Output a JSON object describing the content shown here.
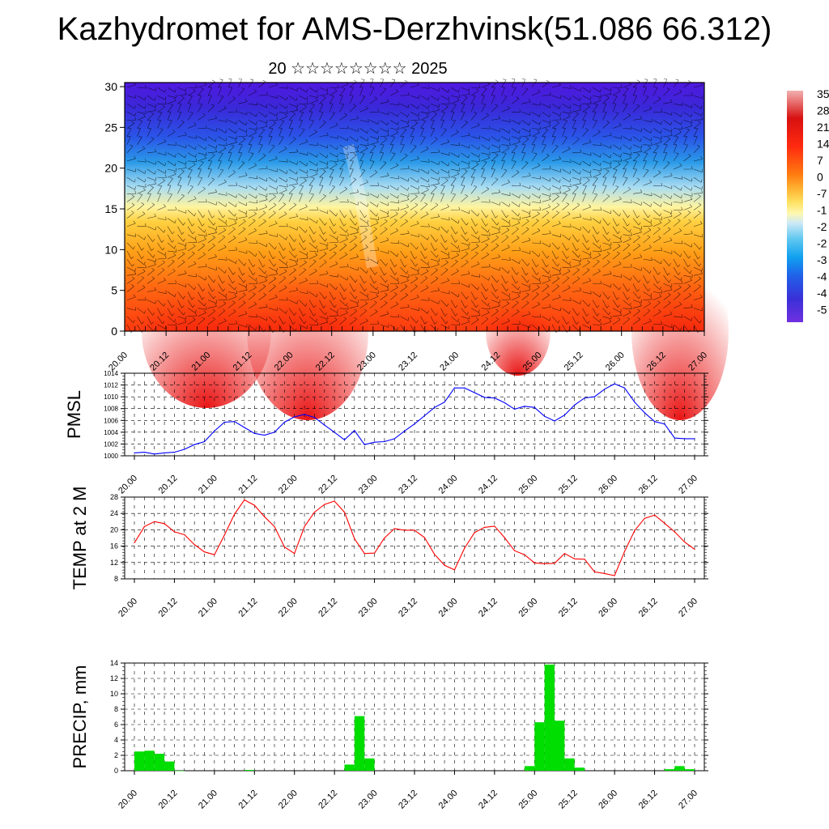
{
  "title": "Kazhydromet for AMS-Derzhvinsk(51.086 66.312)",
  "subtitle": "20 ☆☆☆☆☆☆☆☆ 2025",
  "colors": {
    "pmsl_line": "#0000ff",
    "temp_line": "#ff0000",
    "precip_bar": "#00dd00",
    "palette_stops": [
      "#5a10e8",
      "#3a2ad8",
      "#2060f0",
      "#10a0f0",
      "#9fd8f4",
      "#fff6a0",
      "#ffd040",
      "#ff9010",
      "#ff5010",
      "#e81010",
      "#c00000",
      "#f0a0a0"
    ]
  },
  "chart_data": [
    {
      "type": "heatmap",
      "name": "cross-section",
      "x_ticks": [
        "20.00",
        "20.12",
        "21.00",
        "21.12",
        "22.00",
        "22.12",
        "23.00",
        "23.12",
        "24.00",
        "24.12",
        "25.00",
        "25.12",
        "26.00",
        "26.12",
        "27.00"
      ],
      "y_ticks": [
        "0",
        "5",
        "10",
        "15",
        "20",
        "25",
        "30"
      ],
      "ylim": [
        0,
        30.5
      ],
      "colorbar_labels": [
        "35",
        "28",
        "21",
        "14",
        "7",
        "0",
        "-7",
        "-1",
        "-2",
        "-2",
        "-3",
        "-4",
        "-4",
        "-5"
      ]
    },
    {
      "type": "line",
      "ylabel": "PMSL",
      "x_ticks": [
        "20.00",
        "20.12",
        "21.00",
        "21.12",
        "22.00",
        "22.12",
        "23.00",
        "23.12",
        "24.00",
        "24.12",
        "25.00",
        "25.12",
        "26.00",
        "26.12",
        "27.00"
      ],
      "y_ticks": [
        "1000",
        "1002",
        "1004",
        "1006",
        "1008",
        "1010",
        "1012",
        "1014"
      ],
      "ylim": [
        1000,
        1014
      ],
      "x": [
        0,
        3,
        6,
        9,
        12,
        15,
        18,
        21,
        24,
        27,
        30,
        33,
        36,
        39,
        42,
        45,
        48,
        51,
        54,
        57,
        60,
        63,
        66,
        69,
        72,
        75,
        78,
        81,
        84,
        87,
        90,
        93,
        96,
        99,
        102,
        105,
        108,
        111,
        114,
        117,
        120,
        123,
        126,
        129,
        132,
        135,
        138,
        141,
        144,
        147,
        150,
        153,
        156,
        159,
        162,
        165,
        168
      ],
      "values": [
        1000.5,
        1000.6,
        1000.3,
        1000.5,
        1000.6,
        1001.1,
        1001.9,
        1002.4,
        1004.2,
        1005.7,
        1005.8,
        1004.8,
        1003.8,
        1003.5,
        1004.0,
        1005.7,
        1006.6,
        1007.0,
        1006.5,
        1005.2,
        1004.0,
        1002.7,
        1004.3,
        1001.9,
        1002.3,
        1002.4,
        1002.9,
        1004.2,
        1005.4,
        1006.8,
        1008.2,
        1009.1,
        1011.5,
        1011.5,
        1010.7,
        1009.9,
        1009.8,
        1009.0,
        1007.9,
        1008.4,
        1008.2,
        1006.7,
        1005.9,
        1006.9,
        1008.6,
        1009.8,
        1010.0,
        1011.3,
        1012.2,
        1011.5,
        1009.1,
        1007.3,
        1005.8,
        1005.4,
        1003.0,
        1002.9,
        1002.9
      ]
    },
    {
      "type": "line",
      "ylabel": "TEMP at 2 M",
      "x_ticks": [
        "20.00",
        "20.12",
        "21.00",
        "21.12",
        "22.00",
        "22.12",
        "23.00",
        "23.12",
        "24.00",
        "24.12",
        "25.00",
        "25.12",
        "26.00",
        "26.12",
        "27.00"
      ],
      "y_ticks": [
        "8",
        "12",
        "16",
        "20",
        "24",
        "28"
      ],
      "ylim": [
        8,
        28
      ],
      "x": [
        0,
        3,
        6,
        9,
        12,
        15,
        18,
        21,
        24,
        27,
        30,
        33,
        36,
        39,
        42,
        45,
        48,
        51,
        54,
        57,
        60,
        63,
        66,
        69,
        72,
        75,
        78,
        81,
        84,
        87,
        90,
        93,
        96,
        99,
        102,
        105,
        108,
        111,
        114,
        117,
        120,
        123,
        126,
        129,
        132,
        135,
        138,
        141,
        144,
        147,
        150,
        153,
        156,
        159,
        162,
        165,
        168
      ],
      "values": [
        16.8,
        20.8,
        22.0,
        21.5,
        19.5,
        18.8,
        16.4,
        14.6,
        13.9,
        18.7,
        23.8,
        27.3,
        26.0,
        23.2,
        20.8,
        15.8,
        14.2,
        20.8,
        24.3,
        26.2,
        27.0,
        24.3,
        17.8,
        14.2,
        14.3,
        18.0,
        20.3,
        19.9,
        19.9,
        18.1,
        14.0,
        11.3,
        10.2,
        15.5,
        19.3,
        20.6,
        20.9,
        18.1,
        14.9,
        13.9,
        11.9,
        11.7,
        11.8,
        14.2,
        12.9,
        12.8,
        9.7,
        9.3,
        8.8,
        14.7,
        19.8,
        22.8,
        23.6,
        21.6,
        19.5,
        17.0,
        15.2
      ]
    },
    {
      "type": "bar",
      "ylabel": "PRECIP, mm",
      "x_ticks": [
        "20.00",
        "20.12",
        "21.00",
        "21.12",
        "22.00",
        "22.12",
        "23.00",
        "23.12",
        "24.00",
        "24.12",
        "25.00",
        "25.12",
        "26.00",
        "26.12",
        "27.00"
      ],
      "y_ticks": [
        "0",
        "2",
        "4",
        "6",
        "8",
        "10",
        "12",
        "14"
      ],
      "ylim": [
        0,
        14
      ],
      "x": [
        3,
        6,
        9,
        12,
        15,
        36,
        66,
        69,
        72,
        120,
        123,
        126,
        129,
        132,
        135,
        162,
        165,
        168
      ],
      "values": [
        2.5,
        2.6,
        2.2,
        1.2,
        0.0,
        0.1,
        0.8,
        7.1,
        1.6,
        0.6,
        6.3,
        13.8,
        6.5,
        1.6,
        0.4,
        0.2,
        0.6,
        0.2
      ]
    }
  ]
}
